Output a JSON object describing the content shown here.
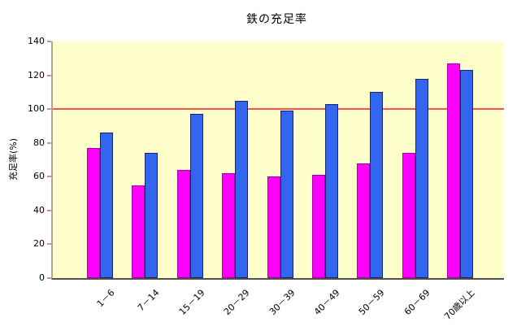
{
  "chart_data": {
    "type": "bar",
    "title": "鉄の充足率",
    "xlabel": "",
    "ylabel": "充足率(%)",
    "ylim": [
      0,
      140
    ],
    "yticks": [
      0,
      20,
      40,
      60,
      80,
      100,
      120,
      140
    ],
    "grid": false,
    "legend": "none",
    "plot_bg": "#FFFFCC",
    "categories": [
      "1－6",
      "7－14",
      "15－19",
      "20－29",
      "30－39",
      "40－49",
      "50－59",
      "60－69",
      "70歳以上"
    ],
    "series": [
      {
        "name": "series-magenta",
        "color": "#FF00FF",
        "border_color": "#A800A8",
        "values": [
          77,
          55,
          64,
          62,
          60,
          61,
          68,
          74,
          127
        ]
      },
      {
        "name": "series-blue",
        "color": "#3366EE",
        "border_color": "#14266E",
        "values": [
          86,
          74,
          97,
          105,
          99,
          103,
          110,
          118,
          123
        ]
      }
    ],
    "reference_line": {
      "value": 100,
      "color": "#FF5050"
    }
  }
}
